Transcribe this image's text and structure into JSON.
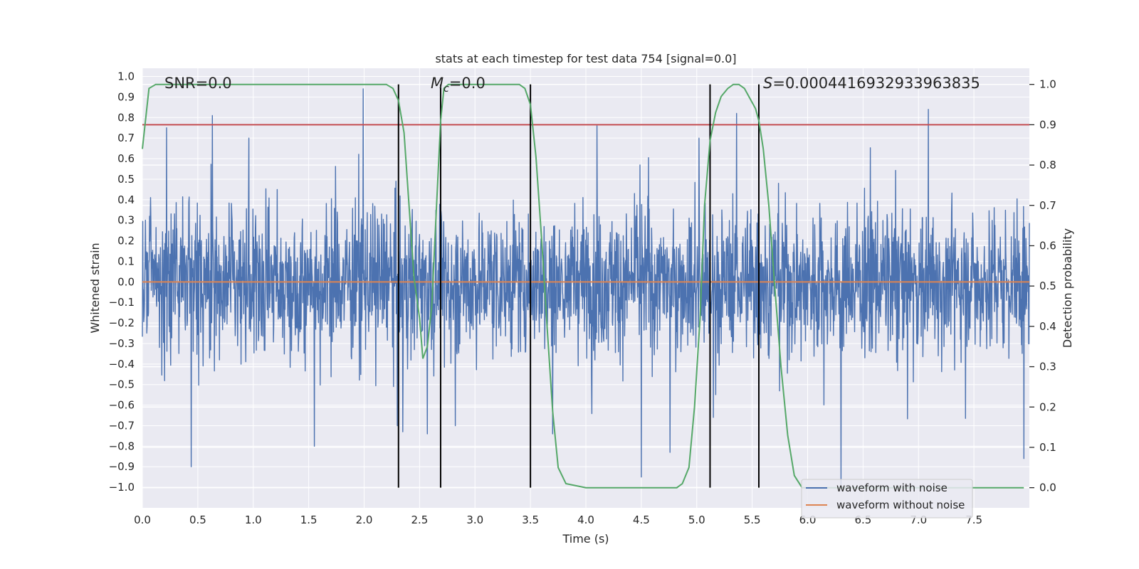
{
  "chart_data": {
    "type": "line",
    "title": "stats at each timestep for test data 754 [signal=0.0]",
    "xlabel": "Time (s)",
    "ylabel_left": "Whitened strain",
    "ylabel_right": "Detection probability",
    "xlim": [
      0.0,
      8.0
    ],
    "ylim_left": [
      -1.1,
      1.04
    ],
    "ylim_right": [
      -0.05,
      1.04
    ],
    "x_ticks": [
      "0.0",
      "0.5",
      "1.0",
      "1.5",
      "2.0",
      "2.5",
      "3.0",
      "3.5",
      "4.0",
      "4.5",
      "5.0",
      "5.5",
      "6.0",
      "6.5",
      "7.0",
      "7.5"
    ],
    "left_ticks": [
      "1.0",
      "0.9",
      "0.8",
      "0.7",
      "0.6",
      "0.5",
      "0.4",
      "0.3",
      "0.2",
      "0.1",
      "0.0",
      "-0.1",
      "-0.2",
      "-0.3",
      "-0.4",
      "-0.5",
      "-0.6",
      "-0.7",
      "-0.8",
      "-0.9",
      "-1.0"
    ],
    "right_ticks": [
      "1.0",
      "0.9",
      "0.8",
      "0.7",
      "0.6",
      "0.5",
      "0.4",
      "0.3",
      "0.2",
      "0.1",
      "0.0"
    ],
    "annotations": {
      "snr": "SNR=0.0",
      "mc_symbol": "M",
      "mc_subscript": "c",
      "mc_value": "=0.0",
      "s_symbol": "S",
      "s_value": "=0.0004416932933963835"
    },
    "threshold_prob": 0.9,
    "vertical_lines_s": [
      2.31,
      2.69,
      3.5,
      5.12,
      5.56
    ],
    "series": [
      {
        "name": "waveform with noise",
        "color": "#4c72b0",
        "description": "dense noisy whitened strain, mostly within ±0.35 with spikes up to ~0.94 and down to ~-0.94",
        "peak_spikes": [
          [
            0.22,
            0.75
          ],
          [
            0.63,
            0.81
          ],
          [
            1.99,
            0.94
          ],
          [
            2.35,
            -0.73
          ],
          [
            2.57,
            -0.74
          ],
          [
            3.7,
            -0.74
          ],
          [
            4.1,
            0.76
          ],
          [
            4.5,
            -0.95
          ],
          [
            4.76,
            -0.83
          ],
          [
            5.36,
            0.82
          ],
          [
            5.15,
            -0.66
          ],
          [
            6.3,
            -1.0
          ],
          [
            7.09,
            0.84
          ],
          [
            7.95,
            -0.86
          ],
          [
            0.44,
            -0.9
          ],
          [
            1.55,
            -0.8
          ]
        ]
      },
      {
        "name": "waveform without noise",
        "color": "#dd8452",
        "description": "flat at 0.0 over the whole interval",
        "x": [
          0.0,
          8.0
        ],
        "values": [
          0.0,
          0.0
        ]
      },
      {
        "name": "detection probability",
        "color": "#55a868",
        "axis": "right",
        "x": [
          0.0,
          0.06,
          0.12,
          0.2,
          0.4,
          1.0,
          1.5,
          2.0,
          2.1,
          2.2,
          2.26,
          2.31,
          2.36,
          2.4,
          2.45,
          2.5,
          2.53,
          2.57,
          2.61,
          2.65,
          2.69,
          2.72,
          2.76,
          2.82,
          2.9,
          3.1,
          3.3,
          3.4,
          3.45,
          3.5,
          3.55,
          3.6,
          3.65,
          3.7,
          3.75,
          3.82,
          4.0,
          4.3,
          4.6,
          4.75,
          4.82,
          4.87,
          4.93,
          4.98,
          5.03,
          5.07,
          5.12,
          5.17,
          5.22,
          5.28,
          5.33,
          5.38,
          5.43,
          5.49,
          5.53,
          5.56,
          5.6,
          5.65,
          5.7,
          5.76,
          5.82,
          5.88,
          5.95,
          6.05,
          6.2,
          6.6,
          7.0,
          7.5,
          7.95
        ],
        "values": [
          0.84,
          0.99,
          1.0,
          1.0,
          1.0,
          1.0,
          1.0,
          1.0,
          1.0,
          1.0,
          0.99,
          0.96,
          0.88,
          0.72,
          0.52,
          0.42,
          0.32,
          0.35,
          0.45,
          0.68,
          0.91,
          0.99,
          1.0,
          1.0,
          1.0,
          1.0,
          1.0,
          1.0,
          0.99,
          0.95,
          0.82,
          0.62,
          0.4,
          0.19,
          0.05,
          0.01,
          0.0,
          0.0,
          0.0,
          0.0,
          0.0,
          0.01,
          0.05,
          0.2,
          0.42,
          0.7,
          0.86,
          0.93,
          0.97,
          0.99,
          1.0,
          1.0,
          0.99,
          0.96,
          0.94,
          0.91,
          0.84,
          0.7,
          0.51,
          0.3,
          0.13,
          0.03,
          0.0,
          0.0,
          0.0,
          0.0,
          0.0,
          0.0,
          0.0
        ]
      }
    ],
    "legend": {
      "placement": "bottom-right",
      "entries": [
        "waveform with noise",
        "waveform without noise"
      ]
    }
  }
}
